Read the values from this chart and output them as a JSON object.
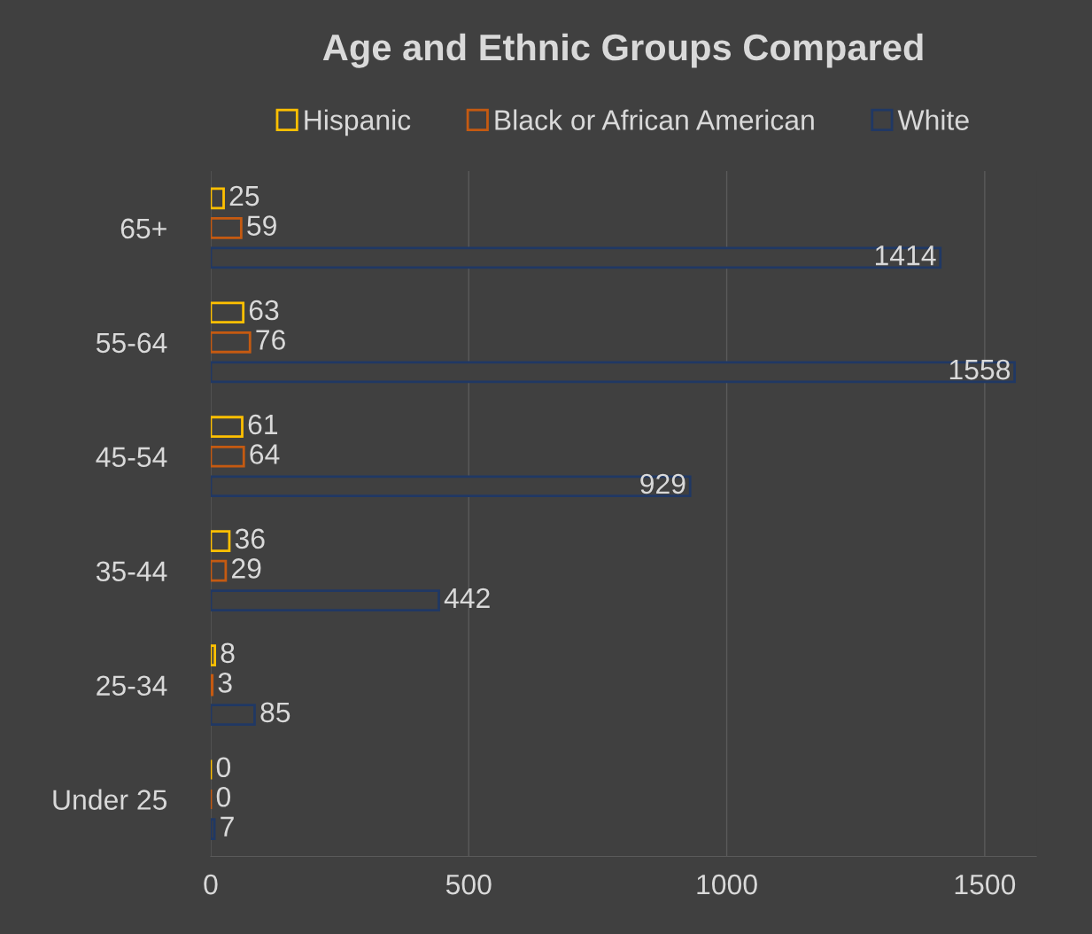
{
  "chart_data": {
    "type": "bar",
    "orientation": "horizontal",
    "title": "Age and Ethnic Groups Compared",
    "categories": [
      "65+",
      "55-64",
      "45-54",
      "35-44",
      "25-34",
      "Under 25"
    ],
    "series": [
      {
        "name": "Hispanic",
        "color": "#ffc000",
        "values": [
          25,
          63,
          61,
          36,
          8,
          0
        ]
      },
      {
        "name": "Black or African American",
        "color": "#c55a11",
        "values": [
          59,
          76,
          64,
          29,
          3,
          0
        ]
      },
      {
        "name": "White",
        "color": "#203864",
        "values": [
          1414,
          1558,
          929,
          442,
          85,
          7
        ]
      }
    ],
    "xlim": [
      0,
      1600
    ],
    "xticks": [
      0,
      500,
      1000,
      1500
    ],
    "grid": "x",
    "legend": "top",
    "data_labels": true
  }
}
